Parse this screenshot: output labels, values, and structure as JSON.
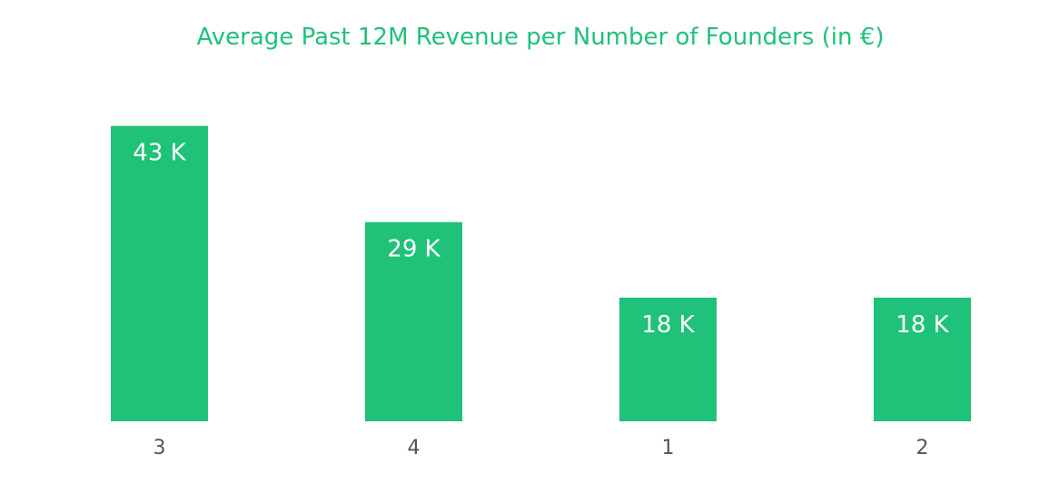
{
  "chart_data": {
    "type": "bar",
    "title": "Average Past 12M Revenue per Number of Founders (in €)",
    "xlabel": "",
    "ylabel": "",
    "categories": [
      "3",
      "4",
      "1",
      "2"
    ],
    "values": [
      43,
      29,
      18,
      18
    ],
    "value_labels": [
      "43 K",
      "29 K",
      "18 K",
      "18 K"
    ],
    "ylim": [
      0,
      46
    ],
    "grid": false,
    "colors": {
      "bar": "#1fc278",
      "title": "#1fc278",
      "bar_label": "#ffffff",
      "tick_label": "#555555"
    }
  }
}
